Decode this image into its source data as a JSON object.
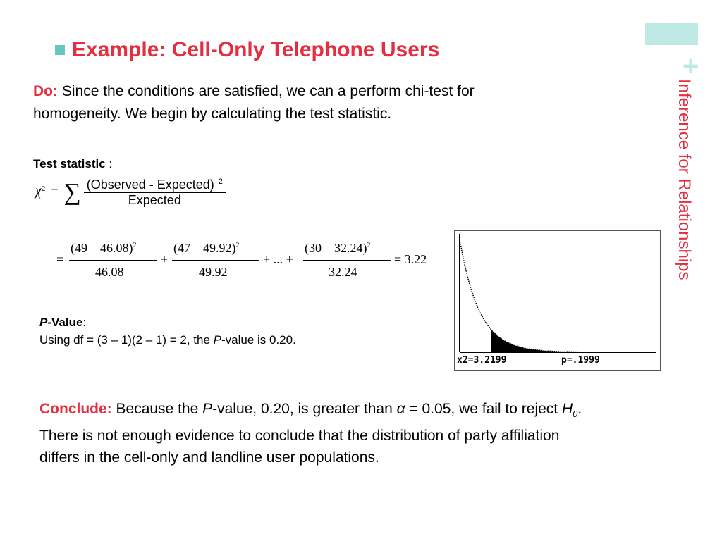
{
  "slide": {
    "title": "Example: Cell-Only Telephone Users",
    "side_title": "Inference for Relationships",
    "do_label": "Do:",
    "do_text_line1": "Since the conditions are satisfied, we can a perform chi-test for",
    "do_text_line2": "homogeneity. We begin by calculating the test statistic.",
    "test_statistic_label": "Test statistic",
    "test_statistic_colon": ":",
    "formula": {
      "chi": "χ",
      "exp2": "2",
      "equals": "=",
      "sigma": "∑",
      "numerator": "(Observed  - Expected)",
      "numerator_exp": "2",
      "denominator": "Expected"
    },
    "calc": {
      "eq1": "=",
      "t1_num": "(49 – 46.08)",
      "t1_exp": "2",
      "t1_den": "46.08",
      "plus1": "+",
      "t2_num": "(47 – 49.92)",
      "t2_exp": "2",
      "t2_den": "49.92",
      "plus2": "+ ... +",
      "t3_num": "(30 – 32.24)",
      "t3_exp": "2",
      "t3_den": "32.24",
      "result": "= 3.22"
    },
    "pvalue_label_p": "P",
    "pvalue_label_rest": "-Value",
    "pvalue_colon": ":",
    "pvalue_text_a": "Using df = (3 – 1)(2 – 1) = 2, the ",
    "pvalue_text_p": "P",
    "pvalue_text_b": "-value is 0.20.",
    "conclude_label": "Conclude:",
    "conclude_a": " Because the ",
    "conclude_p": "P",
    "conclude_b": "-value, 0.20, is greater than ",
    "conclude_alpha": "α",
    "conclude_c": " = 0.05, we fail to reject ",
    "conclude_h": "H",
    "conclude_h_sub": "0",
    "conclude_d": ".",
    "conclude_line2": "There is not enough evidence to conclude that the distribution of party affiliation",
    "conclude_line3": "differs in the cell-only and landline user populations."
  },
  "calculator": {
    "chi_readout": "x2=3.2199",
    "p_readout": "p=.1999",
    "df": 2,
    "shaded_from": 3.2199
  },
  "colors": {
    "accent_red": "#e52e3f",
    "accent_teal": "#66c6c0",
    "accent_light_teal": "#bfe9e5"
  }
}
